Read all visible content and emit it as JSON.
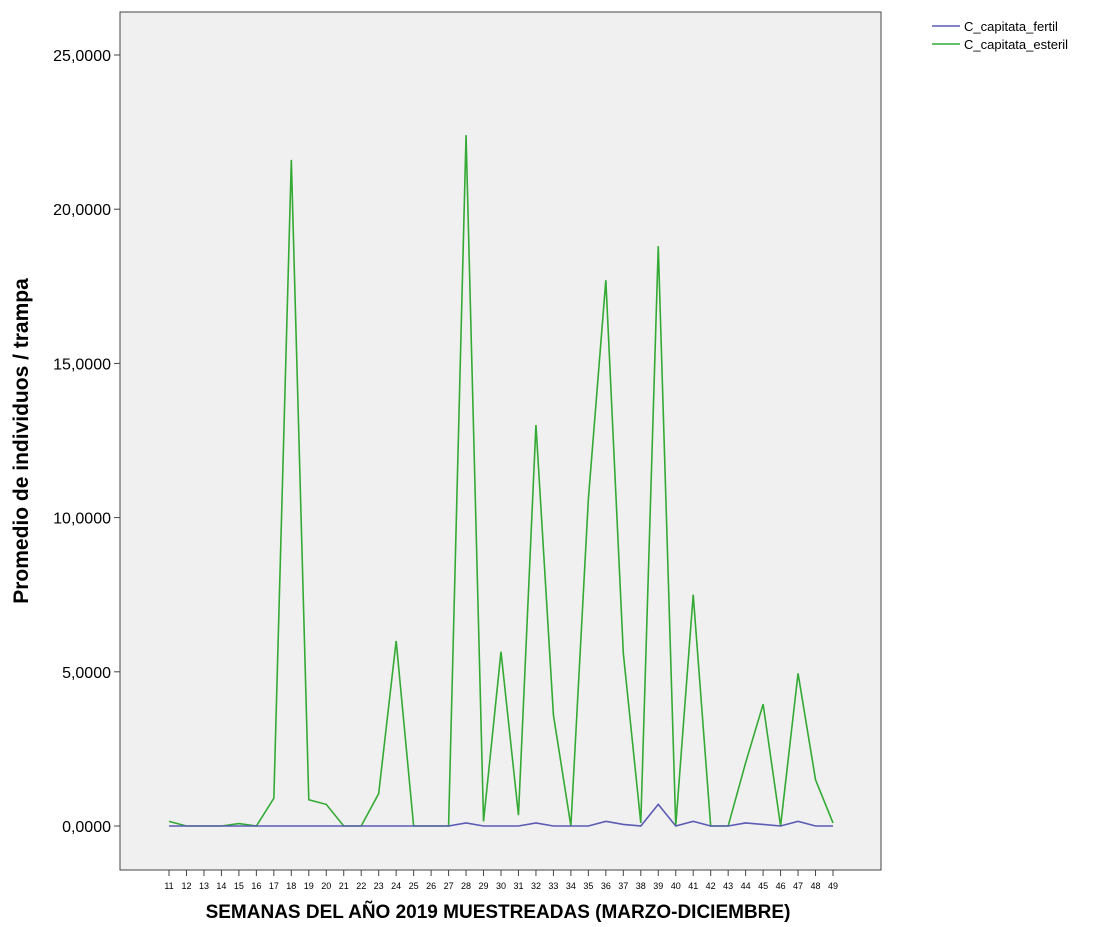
{
  "chart_data": {
    "type": "line",
    "xlabel": "SEMANAS DEL AÑO 2019 MUESTREADAS (MARZO-DICIEMBRE)",
    "ylabel": "Promedio de individuos / trampa",
    "ylim": [
      0,
      26.5
    ],
    "yticks": [
      {
        "value": 0,
        "label": "0,0000"
      },
      {
        "value": 5,
        "label": "5,0000"
      },
      {
        "value": 10,
        "label": "10,0000"
      },
      {
        "value": 15,
        "label": "15,0000"
      },
      {
        "value": 20,
        "label": "20,0000"
      },
      {
        "value": 25,
        "label": "25,0000"
      }
    ],
    "categories": [
      "11",
      "12",
      "13",
      "14",
      "15",
      "16",
      "17",
      "18",
      "19",
      "20",
      "21",
      "22",
      "23",
      "24",
      "25",
      "26",
      "27",
      "28",
      "29",
      "30",
      "31",
      "32",
      "33",
      "34",
      "35",
      "36",
      "37",
      "38",
      "39",
      "40",
      "41",
      "42",
      "43",
      "44",
      "45",
      "46",
      "47",
      "48",
      "49"
    ],
    "legend_position": "top-right",
    "series": [
      {
        "name": "C_capitata_fertil",
        "color": "#5b5bb5",
        "values": [
          0,
          0,
          0,
          0,
          0,
          0,
          0,
          0,
          0,
          0,
          0,
          0,
          0,
          0,
          0,
          0,
          0,
          0.1,
          0,
          0,
          0,
          0.1,
          0,
          0,
          0,
          0.15,
          0.05,
          0,
          0.7,
          0,
          0.15,
          0,
          0,
          0.1,
          0.05,
          0,
          0.15,
          0,
          0
        ]
      },
      {
        "name": "C_capitata_esteril",
        "color": "#33aa33",
        "values": [
          0.15,
          0,
          0,
          0,
          0.08,
          0,
          0.9,
          21.6,
          0.85,
          0.7,
          0,
          0,
          1.05,
          6.0,
          0,
          0,
          0,
          22.4,
          0.15,
          5.65,
          0.35,
          13.0,
          3.6,
          0,
          10.6,
          17.7,
          5.6,
          0.1,
          18.8,
          0,
          7.5,
          0,
          0,
          2.05,
          3.95,
          0,
          4.95,
          1.5,
          0.1
        ]
      }
    ]
  }
}
